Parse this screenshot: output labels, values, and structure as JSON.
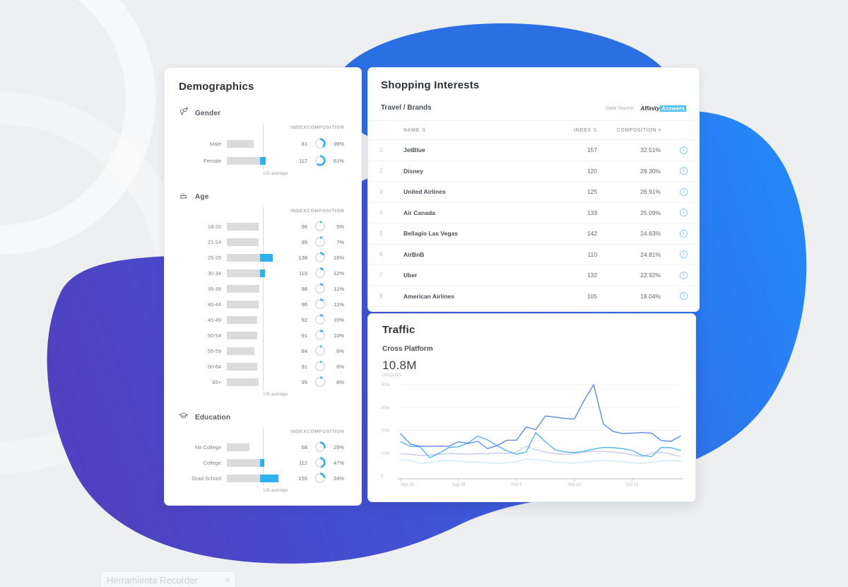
{
  "colors": {
    "accent": "#2fb1ef",
    "bar_gray": "#d9dbdd",
    "top_blob": "#2b70e3",
    "blob_gradient_start": "#5140bf",
    "blob_gradient_end": "#2486f8"
  },
  "demographics": {
    "title": "Demographics",
    "columns": {
      "index": "INDEX",
      "composition": "COMPOSITION"
    },
    "us_average_label": "US average",
    "sections": [
      {
        "name": "Gender",
        "icon": "gender-icon",
        "row_h": "tall",
        "rows": [
          {
            "label": "Male",
            "index": 81,
            "composition": 39
          },
          {
            "label": "Female",
            "index": 117,
            "composition": 61
          }
        ]
      },
      {
        "name": "Age",
        "icon": "age-icon",
        "row_h": "",
        "rows": [
          {
            "label": "18-20",
            "index": 96,
            "composition": 5
          },
          {
            "label": "21-24",
            "index": 95,
            "composition": 7
          },
          {
            "label": "25-29",
            "index": 138,
            "composition": 16
          },
          {
            "label": "30-34",
            "index": 115,
            "composition": 12
          },
          {
            "label": "35-39",
            "index": 98,
            "composition": 11
          },
          {
            "label": "40-44",
            "index": 96,
            "composition": 11
          },
          {
            "label": "45-49",
            "index": 92,
            "composition": 10
          },
          {
            "label": "50-54",
            "index": 91,
            "composition": 10
          },
          {
            "label": "55-59",
            "index": 84,
            "composition": 6
          },
          {
            "label": "60-64",
            "index": 91,
            "composition": 6
          },
          {
            "label": "65+",
            "index": 95,
            "composition": 8
          }
        ]
      },
      {
        "name": "Education",
        "icon": "education-icon",
        "row_h": "",
        "rows": [
          {
            "label": "No College",
            "index": 68,
            "composition": 29
          },
          {
            "label": "College",
            "index": 112,
            "composition": 47
          },
          {
            "label": "Grad School",
            "index": 155,
            "composition": 24
          }
        ]
      }
    ]
  },
  "shopping": {
    "title": "Shopping Interests",
    "subtitle": "Travel / Brands",
    "data_source_label": "Data Source:",
    "brand_part1": "Affinity",
    "brand_part2": "Answers",
    "columns": {
      "name": "NAME",
      "index": "INDEX",
      "composition": "COMPOSITION"
    },
    "sort_icon": "⇅",
    "caret_icon": "▾",
    "info_icon": "i",
    "rows": [
      {
        "rank": 1,
        "name": "JetBlue",
        "index": 157,
        "composition": "32.51%"
      },
      {
        "rank": 2,
        "name": "Disney",
        "index": 120,
        "composition": "29.30%"
      },
      {
        "rank": 3,
        "name": "United Airlines",
        "index": 125,
        "composition": "26.91%"
      },
      {
        "rank": 4,
        "name": "Air Canada",
        "index": 133,
        "composition": "25.09%"
      },
      {
        "rank": 5,
        "name": "Bellagio Las Vegas",
        "index": 142,
        "composition": "24.63%"
      },
      {
        "rank": 6,
        "name": "AirBnB",
        "index": 110,
        "composition": "24.81%"
      },
      {
        "rank": 7,
        "name": "Uber",
        "index": 132,
        "composition": "22.92%"
      },
      {
        "rank": 8,
        "name": "American Airlines",
        "index": 105,
        "composition": "18.04%"
      }
    ]
  },
  "traffic": {
    "title": "Traffic",
    "subtitle": "Cross Platform",
    "total": "10.8M",
    "total_label": "uniques"
  },
  "chart_data": {
    "type": "line",
    "title": "Cross Platform Traffic",
    "ylabel": "uniques",
    "ylim": [
      0,
      420000
    ],
    "grid": true,
    "ytick_values": [
      400,
      300,
      200,
      100,
      0
    ],
    "ytick_labels": [
      "400k",
      "300k",
      "200k",
      "100k",
      "0"
    ],
    "xtick_indices": [
      0,
      6,
      12,
      18,
      24
    ],
    "xtick_labels": [
      "Sep 22",
      "Sep 28",
      "Oct 4",
      "Oct 10",
      "Oct 16"
    ],
    "unit": "thousands of uniques per day",
    "series": [
      {
        "name": "quaternary",
        "color": "#cfe9f7",
        "values": [
          72,
          68,
          55,
          60,
          65,
          68,
          65,
          62,
          60,
          58,
          55,
          58,
          62,
          75,
          72,
          68,
          62,
          58,
          56,
          60,
          65,
          68,
          66,
          62,
          58,
          55,
          60,
          65,
          68,
          65
        ]
      },
      {
        "name": "tertiary",
        "color": "#c9cdeb",
        "values": [
          98,
          95,
          90,
          92,
          95,
          98,
          97,
          95,
          98,
          97,
          100,
          98,
          105,
          130,
          115,
          105,
          98,
          95,
          98,
          105,
          108,
          108,
          105,
          100,
          92,
          85,
          100,
          105,
          95,
          85
        ]
      },
      {
        "name": "secondary",
        "color": "#4fb6ee",
        "values": [
          150,
          130,
          128,
          80,
          100,
          125,
          128,
          145,
          175,
          158,
          132,
          110,
          95,
          105,
          190,
          150,
          115,
          105,
          103,
          108,
          118,
          125,
          124,
          120,
          112,
          90,
          85,
          125,
          124,
          112
        ]
      },
      {
        "name": "primary",
        "color": "#5b8ce8",
        "values": [
          185,
          140,
          130,
          130,
          131,
          130,
          150,
          143,
          152,
          120,
          133,
          157,
          157,
          215,
          203,
          263,
          258,
          252,
          250,
          330,
          400,
          228,
          195,
          186,
          188,
          190,
          188,
          155,
          152,
          175
        ]
      }
    ]
  },
  "tooltip": {
    "text": "Herramienta Recorder",
    "close_label": "x"
  }
}
